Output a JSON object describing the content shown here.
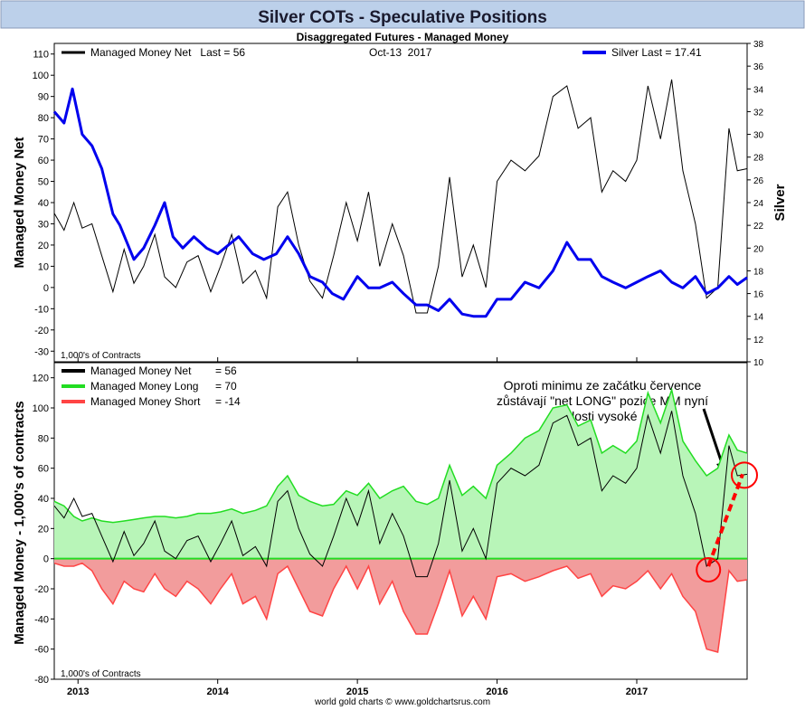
{
  "title": "Silver COTs - Speculative Positions",
  "subtitle": "Disaggregated Futures - Managed Money",
  "footer": "world gold charts © www.goldchartsrus.com",
  "x_ticks": [
    "2013",
    "2014",
    "2015",
    "2016",
    "2017"
  ],
  "colors": {
    "title_bg": "#bcd0ea",
    "title_text": "#1a1a2e",
    "net": "#000000",
    "silver": "#0000ee",
    "long": "#22dd22",
    "long_fill": "#b8f5b8",
    "short": "#ff4444",
    "short_fill": "#f29c9c",
    "annotation": "#ff0000"
  },
  "chart_data": [
    {
      "type": "line",
      "panel": "top",
      "date_label": "Oct-13  2017",
      "unit_note": "1,000's of Contracts",
      "ylabel": "Managed Money Net",
      "y2label": "Silver",
      "ylim": [
        -35,
        115
      ],
      "y2lim": [
        10,
        38
      ],
      "y_ticks": [
        110,
        100,
        90,
        80,
        70,
        60,
        50,
        40,
        30,
        20,
        10,
        0,
        -10,
        -20,
        -30
      ],
      "y2_ticks": [
        38,
        36,
        34,
        32,
        30,
        28,
        26,
        24,
        22,
        20,
        18,
        16,
        14,
        12,
        10
      ],
      "xlim": [
        2012.83,
        2017.79
      ],
      "series": [
        {
          "name": "Managed Money Net",
          "legend": "Managed Money Net   Last = 56",
          "axis": "left",
          "x": [
            2012.83,
            2012.9,
            2012.97,
            2013.03,
            2013.1,
            2013.17,
            2013.25,
            2013.33,
            2013.4,
            2013.47,
            2013.55,
            2013.62,
            2013.7,
            2013.78,
            2013.86,
            2013.95,
            2014.02,
            2014.1,
            2014.18,
            2014.27,
            2014.35,
            2014.43,
            2014.5,
            2014.58,
            2014.66,
            2014.75,
            2014.83,
            2014.92,
            2015.0,
            2015.08,
            2015.16,
            2015.25,
            2015.33,
            2015.42,
            2015.5,
            2015.58,
            2015.66,
            2015.75,
            2015.83,
            2015.92,
            2016.0,
            2016.1,
            2016.2,
            2016.3,
            2016.4,
            2016.5,
            2016.58,
            2016.67,
            2016.75,
            2016.83,
            2016.92,
            2017.0,
            2017.08,
            2017.17,
            2017.25,
            2017.33,
            2017.42,
            2017.5,
            2017.58,
            2017.66,
            2017.72,
            2017.79
          ],
          "values": [
            35,
            27,
            40,
            28,
            30,
            15,
            -2,
            18,
            2,
            10,
            25,
            5,
            0,
            12,
            15,
            -2,
            10,
            25,
            2,
            8,
            -5,
            38,
            45,
            20,
            3,
            -5,
            15,
            40,
            22,
            45,
            10,
            30,
            15,
            -12,
            -12,
            10,
            52,
            5,
            20,
            0,
            50,
            60,
            55,
            62,
            90,
            95,
            75,
            80,
            45,
            55,
            50,
            60,
            95,
            70,
            98,
            55,
            30,
            -5,
            0,
            75,
            55,
            56
          ]
        },
        {
          "name": "Silver",
          "legend": "Silver Last = 17.41",
          "axis": "right",
          "x": [
            2012.83,
            2012.9,
            2012.96,
            2013.03,
            2013.1,
            2013.17,
            2013.25,
            2013.3,
            2013.4,
            2013.47,
            2013.55,
            2013.62,
            2013.68,
            2013.75,
            2013.83,
            2013.92,
            2014.0,
            2014.1,
            2014.15,
            2014.25,
            2014.33,
            2014.42,
            2014.5,
            2014.58,
            2014.66,
            2014.75,
            2014.82,
            2014.9,
            2015.0,
            2015.08,
            2015.16,
            2015.25,
            2015.33,
            2015.42,
            2015.5,
            2015.58,
            2015.66,
            2015.75,
            2015.83,
            2015.92,
            2016.0,
            2016.1,
            2016.2,
            2016.3,
            2016.4,
            2016.5,
            2016.58,
            2016.67,
            2016.75,
            2016.83,
            2016.92,
            2017.0,
            2017.08,
            2017.17,
            2017.25,
            2017.33,
            2017.42,
            2017.5,
            2017.58,
            2017.66,
            2017.72,
            2017.79
          ],
          "values": [
            32,
            31,
            34,
            30,
            29,
            27,
            23,
            22,
            19,
            20,
            22,
            24,
            21,
            20,
            21,
            20,
            19.5,
            20.5,
            21,
            19.5,
            19,
            19.5,
            21,
            19.5,
            17.5,
            17,
            16,
            15.5,
            17.5,
            16.5,
            16.5,
            17,
            16,
            15,
            15,
            14.5,
            15.5,
            14.2,
            14,
            14,
            15.5,
            15.5,
            17,
            16.5,
            18,
            20.5,
            19,
            19,
            17.5,
            17,
            16.5,
            17,
            17.5,
            18,
            17,
            16.5,
            17.5,
            16,
            16.5,
            17.5,
            16.8,
            17.41
          ]
        }
      ]
    },
    {
      "type": "area",
      "panel": "bottom",
      "unit_note": "1,000's of Contracts",
      "ylabel": "Managed Money - 1,000's of contracts",
      "ylim": [
        -80,
        130
      ],
      "y_ticks": [
        120,
        100,
        80,
        60,
        40,
        20,
        0,
        -20,
        -40,
        -60,
        -80
      ],
      "xlim": [
        2012.83,
        2017.79
      ],
      "x": [
        2012.83,
        2012.9,
        2012.97,
        2013.03,
        2013.1,
        2013.17,
        2013.25,
        2013.33,
        2013.4,
        2013.47,
        2013.55,
        2013.62,
        2013.7,
        2013.78,
        2013.86,
        2013.95,
        2014.02,
        2014.1,
        2014.18,
        2014.27,
        2014.35,
        2014.43,
        2014.5,
        2014.58,
        2014.66,
        2014.75,
        2014.83,
        2014.92,
        2015.0,
        2015.08,
        2015.16,
        2015.25,
        2015.33,
        2015.42,
        2015.5,
        2015.58,
        2015.66,
        2015.75,
        2015.83,
        2015.92,
        2016.0,
        2016.1,
        2016.2,
        2016.3,
        2016.4,
        2016.5,
        2016.58,
        2016.67,
        2016.75,
        2016.83,
        2016.92,
        2017.0,
        2017.08,
        2017.17,
        2017.25,
        2017.33,
        2017.42,
        2017.5,
        2017.58,
        2017.66,
        2017.72,
        2017.79
      ],
      "series": [
        {
          "name": "Managed Money Net",
          "legend": "Managed Money Net",
          "last": "= 56",
          "values": [
            35,
            27,
            40,
            28,
            30,
            15,
            -2,
            18,
            2,
            10,
            25,
            5,
            0,
            12,
            15,
            -2,
            10,
            25,
            2,
            8,
            -5,
            38,
            45,
            20,
            3,
            -5,
            15,
            40,
            22,
            45,
            10,
            30,
            15,
            -12,
            -12,
            10,
            52,
            5,
            20,
            0,
            50,
            60,
            55,
            62,
            90,
            95,
            75,
            80,
            45,
            55,
            50,
            60,
            95,
            70,
            98,
            55,
            30,
            -5,
            0,
            75,
            55,
            56
          ]
        },
        {
          "name": "Managed Money Long",
          "legend": "Managed Money Long",
          "last": "= 70",
          "values": [
            38,
            35,
            28,
            25,
            27,
            25,
            24,
            25,
            26,
            27,
            28,
            28,
            27,
            28,
            30,
            30,
            31,
            33,
            30,
            32,
            35,
            48,
            55,
            42,
            38,
            35,
            36,
            45,
            42,
            50,
            40,
            45,
            48,
            38,
            36,
            40,
            62,
            42,
            48,
            40,
            62,
            70,
            80,
            85,
            100,
            102,
            88,
            92,
            70,
            75,
            70,
            78,
            110,
            90,
            112,
            78,
            65,
            55,
            60,
            82,
            72,
            70
          ]
        },
        {
          "name": "Managed Money Short",
          "legend": "Managed Money Short",
          "last": "= -14",
          "values": [
            -3,
            -5,
            -5,
            -3,
            -8,
            -20,
            -30,
            -15,
            -20,
            -22,
            -10,
            -20,
            -25,
            -15,
            -20,
            -30,
            -20,
            -10,
            -30,
            -25,
            -40,
            -10,
            -5,
            -20,
            -35,
            -38,
            -20,
            -5,
            -20,
            -5,
            -30,
            -15,
            -35,
            -50,
            -50,
            -30,
            -8,
            -38,
            -25,
            -40,
            -12,
            -10,
            -15,
            -12,
            -8,
            -5,
            -13,
            -10,
            -25,
            -18,
            -20,
            -15,
            -8,
            -20,
            -10,
            -25,
            -35,
            -60,
            -62,
            -8,
            -15,
            -14
          ]
        }
      ],
      "annotation": [
        "Oproti minimu ze začátku července",
        "zůstávají \"net LONG\" pozice MM nyní",
        "dosti vysoké"
      ]
    }
  ]
}
